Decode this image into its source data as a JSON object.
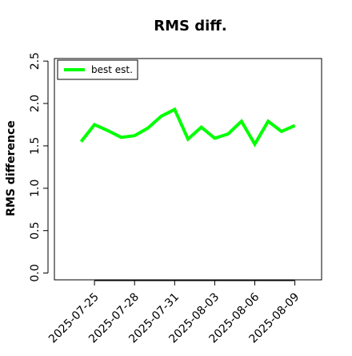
{
  "chart_data": {
    "type": "line",
    "title": "RMS diff.",
    "y_label": "RMS difference",
    "x": [
      "2025-07-24",
      "2025-07-25",
      "2025-07-26",
      "2025-07-27",
      "2025-07-28",
      "2025-07-29",
      "2025-07-30",
      "2025-07-31",
      "2025-08-01",
      "2025-08-02",
      "2025-08-03",
      "2025-08-04",
      "2025-08-05",
      "2025-08-06",
      "2025-08-07",
      "2025-08-08",
      "2025-08-09"
    ],
    "series": [
      {
        "name": "best est.",
        "color": "#00ff00",
        "values": [
          1.55,
          1.75,
          1.68,
          1.6,
          1.62,
          1.71,
          1.85,
          1.93,
          1.58,
          1.72,
          1.59,
          1.64,
          1.79,
          1.52,
          1.79,
          1.67,
          1.74
        ]
      }
    ],
    "xlim": [
      "2025-07-22",
      "2025-08-11"
    ],
    "xticks": [
      "2025-07-25",
      "2025-07-28",
      "2025-07-31",
      "2025-08-03",
      "2025-08-06",
      "2025-08-09"
    ],
    "ylim": [
      -0.08,
      2.53
    ],
    "yticks": [
      {
        "value": 0,
        "label": "0.0"
      },
      {
        "value": 0.5,
        "label": "0.5"
      },
      {
        "value": 1,
        "label": "1.0"
      },
      {
        "value": 1.5,
        "label": "1.5"
      },
      {
        "value": 2,
        "label": "2.0"
      },
      {
        "value": 2.5,
        "label": "2.5"
      }
    ],
    "legend": "top-left"
  }
}
